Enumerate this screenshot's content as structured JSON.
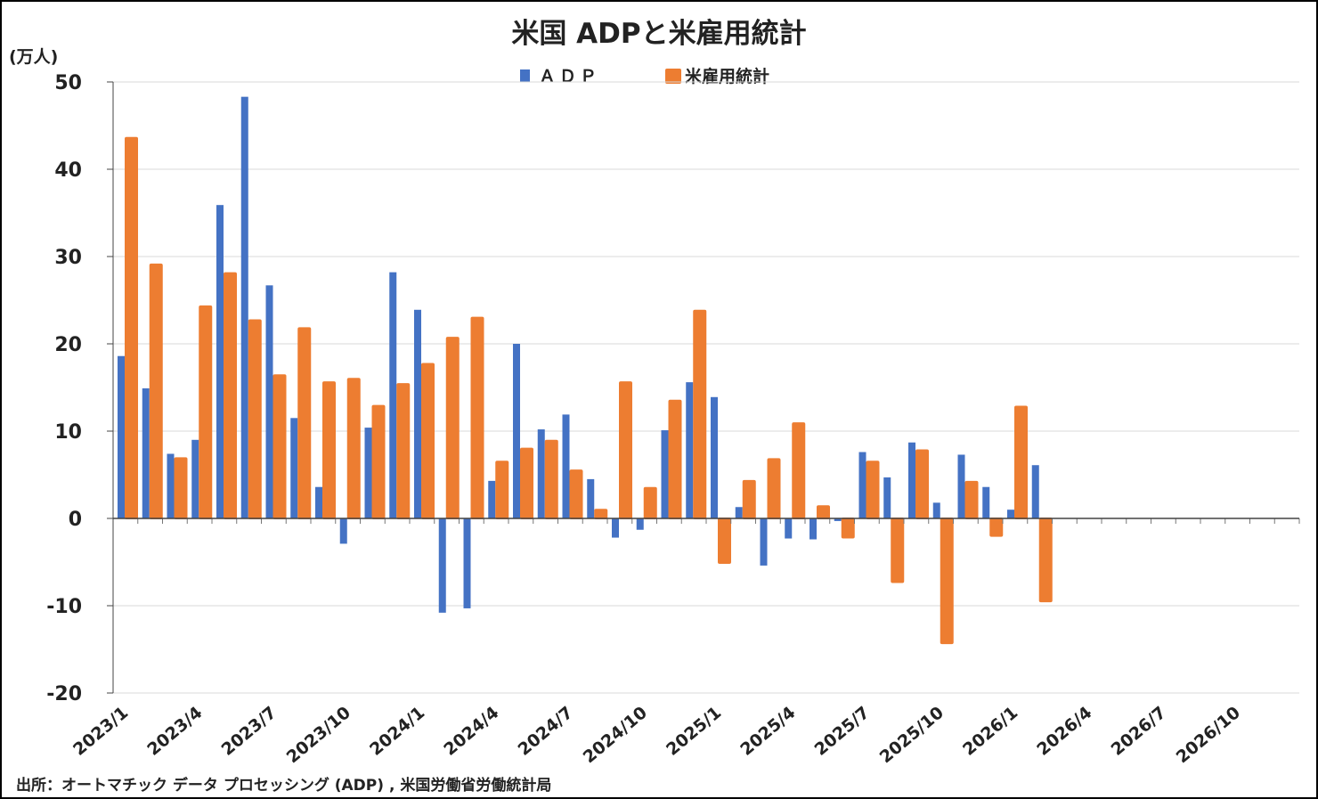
{
  "chart_data": {
    "type": "bar",
    "title": "米国 ADPと米雇用統計",
    "ylabel": "(万人)",
    "ylim": [
      -20,
      50
    ],
    "yticks": [
      50,
      40,
      30,
      20,
      10,
      0,
      -10,
      -20
    ],
    "negative_tick_color": "#FF0000",
    "grid": true,
    "legend_position": "top",
    "categories": [
      "2023/1",
      "2023/2",
      "2023/3",
      "2023/4",
      "2023/5",
      "2023/6",
      "2023/7",
      "2023/8",
      "2023/9",
      "2023/10",
      "2023/11",
      "2023/12",
      "2024/1",
      "2024/2",
      "2024/3",
      "2024/4",
      "2024/5",
      "2024/6",
      "2024/7",
      "2024/8",
      "2024/9",
      "2024/10",
      "2024/11",
      "2024/12",
      "2025/1",
      "2025/2",
      "2025/3",
      "2025/4",
      "2025/5",
      "2025/6",
      "2025/7",
      "2025/8",
      "2025/9",
      "2025/10",
      "2025/11",
      "2025/12",
      "2026/1",
      "2026/2",
      "2026/3",
      "2026/4",
      "2026/5",
      "2026/6",
      "2026/7",
      "2026/8",
      "2026/9",
      "2026/10",
      "2026/11",
      "2026/12"
    ],
    "xtick_labels": [
      "2023/1",
      "2023/4",
      "2023/7",
      "2023/10",
      "2024/1",
      "2024/4",
      "2024/7",
      "2024/10",
      "2025/1",
      "2025/4",
      "2025/7",
      "2025/10",
      "2026/1",
      "2026/4",
      "2026/7",
      "2026/10"
    ],
    "series": [
      {
        "name": "ＡＤＰ",
        "color": "#4472C4",
        "values": [
          18.6,
          14.9,
          7.4,
          9.0,
          35.9,
          48.3,
          26.7,
          11.5,
          3.6,
          -2.9,
          10.4,
          28.2,
          23.9,
          -10.8,
          -10.3,
          4.3,
          20.0,
          10.2,
          11.9,
          4.5,
          -2.2,
          -1.3,
          10.1,
          15.6,
          13.9,
          1.3,
          -5.4,
          -2.3,
          -2.4,
          -0.3,
          7.6,
          4.7,
          8.7,
          1.8,
          7.3,
          3.6,
          1.0,
          6.1,
          null,
          null,
          null,
          null,
          null,
          null,
          null,
          null,
          null,
          null
        ]
      },
      {
        "name": "米雇用統計",
        "color": "#ED7D31",
        "values": [
          43.6,
          29.1,
          6.9,
          24.3,
          28.1,
          22.7,
          16.4,
          21.8,
          15.6,
          16.0,
          12.9,
          15.4,
          17.7,
          20.7,
          23.0,
          6.5,
          8.0,
          8.9,
          5.5,
          1.0,
          15.6,
          3.5,
          13.5,
          23.8,
          -5.1,
          4.3,
          6.8,
          10.9,
          1.4,
          -2.2,
          6.5,
          -7.3,
          7.8,
          -14.3,
          4.2,
          -2.0,
          12.8,
          -9.5,
          null,
          null,
          null,
          null,
          null,
          null,
          null,
          null,
          null,
          null
        ]
      }
    ]
  },
  "source": "出所：オートマチック データ プロセッシング (ADP) , 米国労働省労働統計局"
}
